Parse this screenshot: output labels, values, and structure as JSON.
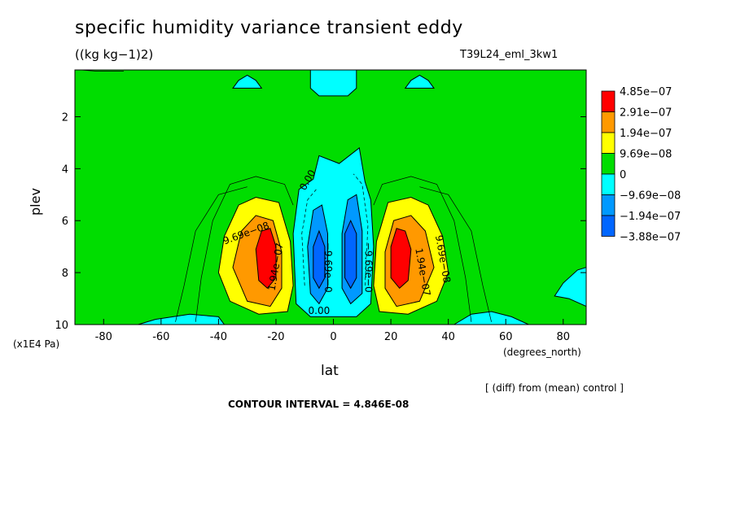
{
  "page": {
    "title": "specific humidity variance transient eddy",
    "units": "((kg kg−1)2)",
    "run_name": "T39L24_eml_3kw1",
    "y_scale_units": "(x1E4 Pa)",
    "x_units": "(degrees_north)",
    "diff_note": "[ (diff) from (mean) control ]",
    "contour_interval": "CONTOUR INTERVAL = 4.846E-08"
  },
  "colors": {
    "red": "#ff0000",
    "orange": "#ff9900",
    "yellow": "#ffff00",
    "green": "#00dd00",
    "cyan": "#00ffff",
    "midblue": "#0099ff",
    "blue": "#0066ff"
  },
  "chart_data": {
    "type": "heatmap",
    "title": "specific humidity variance transient eddy",
    "xlabel": "lat",
    "ylabel": "plev",
    "xlim": [
      -90,
      88
    ],
    "ylim": [
      10,
      0.2
    ],
    "x_ticks": [
      -80,
      -60,
      -40,
      -20,
      0,
      20,
      40,
      60,
      80
    ],
    "y_ticks": [
      2,
      4,
      6,
      8,
      10
    ],
    "legend": {
      "placement": "right",
      "entries": [
        {
          "label": "4.85e−07",
          "color": "#ff0000"
        },
        {
          "label": "2.91e−07",
          "color": "#ff9900"
        },
        {
          "label": "1.94e−07",
          "color": "#ffff00"
        },
        {
          "label": "9.69e−08",
          "color": "#00dd00"
        },
        {
          "label": "0",
          "color": "#00ffff"
        },
        {
          "label": "−9.69e−08",
          "color": "#0099ff"
        },
        {
          "label": "−1.94e−07",
          "color": "#0066ff"
        },
        {
          "label": "−3.88e−07",
          "color": ""
        }
      ]
    },
    "contour_labels": [
      {
        "text": "9.69e−08",
        "x": -30,
        "y": 6.6,
        "angle": -20
      },
      {
        "text": "0.00",
        "x": -8,
        "y": 4.5,
        "angle": -60
      },
      {
        "text": "1.94e−07",
        "x": -19,
        "y": 7.8,
        "angle": -80
      },
      {
        "text": "−9.69e−0",
        "x": -3,
        "y": 7.8,
        "angle": 90
      },
      {
        "text": "−9.69e−0",
        "x": 11,
        "y": 7.8,
        "angle": 90
      },
      {
        "text": "1.94e−07",
        "x": 30,
        "y": 8.0,
        "angle": 80
      },
      {
        "text": "9.69e−08",
        "x": 37,
        "y": 7.5,
        "angle": 80
      },
      {
        "text": "0.00",
        "x": -5,
        "y": 9.6,
        "angle": 0
      }
    ]
  }
}
